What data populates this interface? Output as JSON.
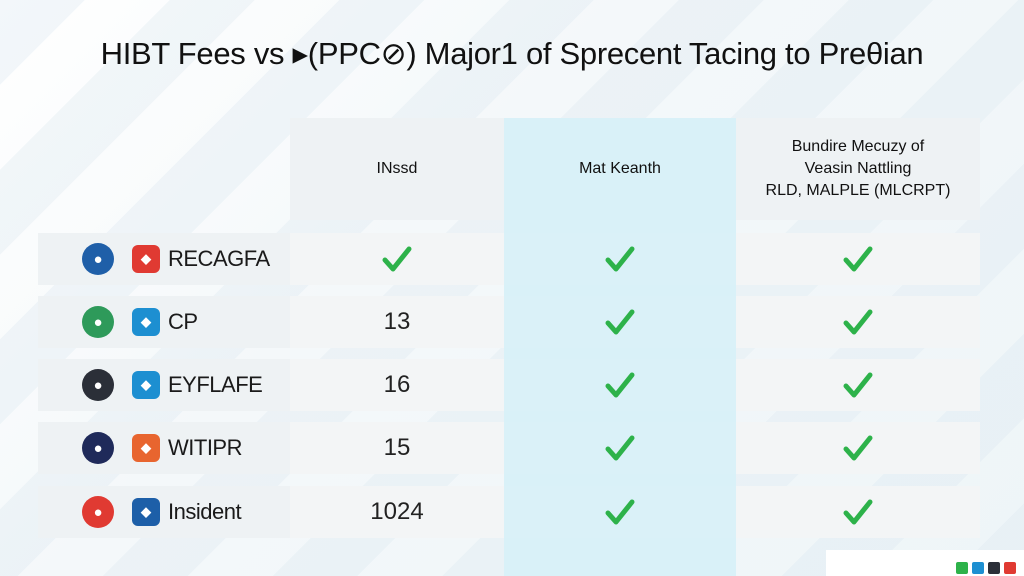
{
  "title": "HIBT Fees vs ▸(PPC⊘) Major1 of Sprecent Tacing to Preθian",
  "columns": {
    "col_a": "INssd",
    "col_b": "Mat Keanth",
    "col_c_line1": "Bundire Mecuzy of",
    "col_c_line2": "Veasin Nattling",
    "col_c_line3": "RLD, MALPLE (MLCRPT)"
  },
  "rows": [
    {
      "brand": "RECAGFA",
      "col_a": "",
      "col_a_check": true,
      "col_b_check": true,
      "col_c_check": true,
      "logo_color": "#1f5fa8",
      "mark_color": "#e03a32"
    },
    {
      "brand": "CP",
      "col_a": "13",
      "col_a_check": false,
      "col_b_check": true,
      "col_c_check": true,
      "logo_color": "#2e9a5a",
      "mark_color": "#1d8fd1"
    },
    {
      "brand": "EYFLAFE",
      "col_a": "16",
      "col_a_check": false,
      "col_b_check": true,
      "col_c_check": true,
      "logo_color": "#2b2f38",
      "mark_color": "#1d8fd1"
    },
    {
      "brand": "WITIPR",
      "col_a": "15",
      "col_a_check": false,
      "col_b_check": true,
      "col_c_check": true,
      "logo_color": "#1f2a5a",
      "mark_color": "#e8652f"
    },
    {
      "brand": "Insident",
      "col_a": "1024",
      "col_a_check": false,
      "col_b_check": true,
      "col_c_check": true,
      "logo_color": "#e03a32",
      "mark_color": "#1d5fa8"
    }
  ],
  "colors": {
    "check": "#2db24a",
    "highlight_column": "#d9f1f8"
  }
}
